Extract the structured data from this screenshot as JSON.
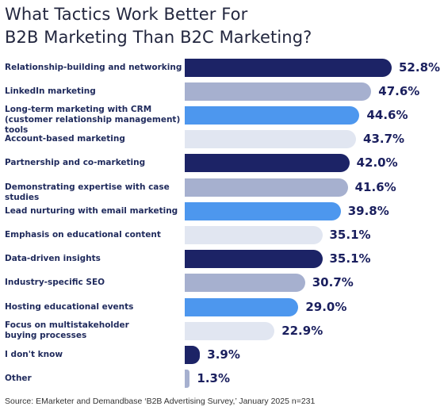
{
  "title_line1": "What Tactics Work Better For",
  "title_line2": "B2B Marketing Than B2C Marketing?",
  "source": "Source: EMarketer and Demandbase ‘B2B Advertising Survey,’ January 2025   n=231",
  "colors": {
    "navy": "#1c2366",
    "gray_blue": "#a6b0cf",
    "bright_blue": "#4d97ee",
    "light": "#e1e6f1"
  },
  "chart_data": {
    "type": "bar",
    "orientation": "horizontal",
    "title": "What Tactics Work Better For B2B Marketing Than B2C Marketing?",
    "unit": "%",
    "categories": [
      [
        "Relationship-building and networking"
      ],
      [
        "LinkedIn marketing"
      ],
      [
        "Long-term marketing with CRM",
        "(customer relationship management) tools"
      ],
      [
        "Account-based marketing"
      ],
      [
        "Partnership and co-marketing"
      ],
      [
        "Demonstrating expertise with case studies"
      ],
      [
        "Lead nurturing with email marketing"
      ],
      [
        "Emphasis on educational content"
      ],
      [
        "Data-driven insights"
      ],
      [
        "Industry-specific SEO"
      ],
      [
        "Hosting educational events"
      ],
      [
        "Focus on multistakeholder",
        "buying processes"
      ],
      [
        "I don't know"
      ],
      [
        "Other"
      ]
    ],
    "values": [
      52.8,
      47.6,
      44.6,
      43.7,
      42.0,
      41.6,
      39.8,
      35.1,
      35.1,
      30.7,
      29.0,
      22.9,
      3.9,
      1.3
    ],
    "value_labels": [
      "52.8%",
      "47.6%",
      "44.6%",
      "43.7%",
      "42.0%",
      "41.6%",
      "39.8%",
      "35.1%",
      "35.1%",
      "30.7%",
      "29.0%",
      "22.9%",
      "3.9%",
      "1.3%"
    ],
    "bar_colors": [
      "navy",
      "gray_blue",
      "bright_blue",
      "light",
      "navy",
      "gray_blue",
      "bright_blue",
      "light",
      "navy",
      "gray_blue",
      "bright_blue",
      "light",
      "navy",
      "gray_blue"
    ]
  }
}
